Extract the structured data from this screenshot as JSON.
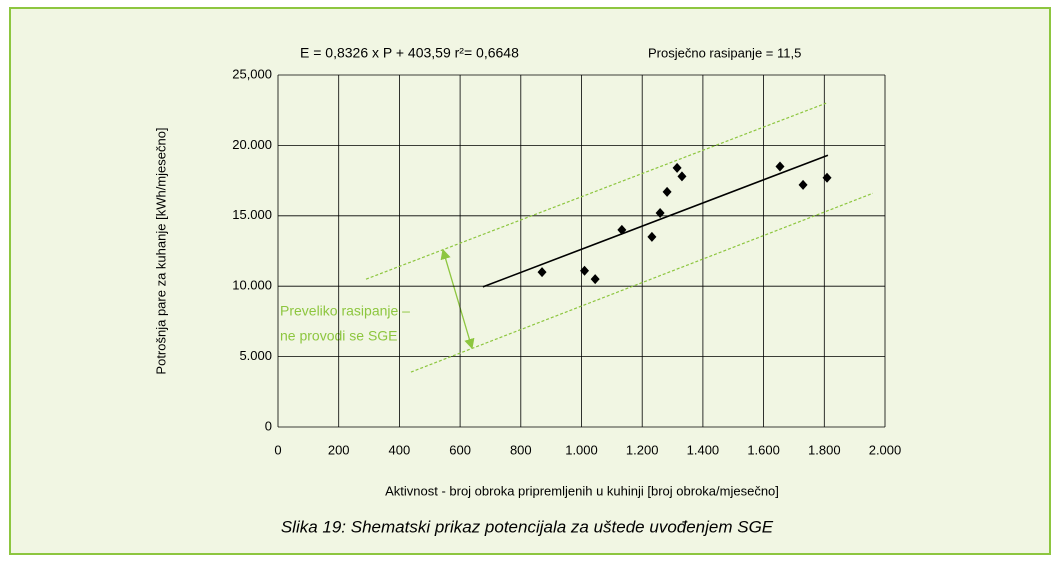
{
  "chart_data": {
    "type": "scatter",
    "equation": "E = 0,8326  x  P + 403,59  r²= 0,6648",
    "scatter_note": "Prosječno rasipanje = 11,5",
    "y_label": "Potrošnja pare za kuhanje  [kWh/mjesečno]",
    "x_label": "Aktivnost - broj obroka pripremljenih u kuhinji [broj obroka/mjesečno]",
    "caption": "Slika 19: Shematski prikaz potencijala za uštede uvođenjem SGE",
    "annotation": [
      "Preveliko rasipanje –",
      "ne provodi se SGE"
    ],
    "xlim": [
      0,
      2000
    ],
    "ylim": [
      0,
      25000
    ],
    "xticks": [
      0,
      200,
      400,
      600,
      800,
      {
        "value": 1000,
        "label": "1.000"
      },
      {
        "value": 1200,
        "label": "1.200"
      },
      {
        "value": 1400,
        "label": "1.400"
      },
      {
        "value": 1600,
        "label": "1.600"
      },
      {
        "value": 1800,
        "label": "1.800"
      },
      {
        "value": 2000,
        "label": "2.000"
      }
    ],
    "yticks": [
      0,
      {
        "value": 5000,
        "label": "5.000"
      },
      {
        "value": 10000,
        "label": "10.000"
      },
      {
        "value": 15000,
        "label": "15.000"
      },
      {
        "value": 20000,
        "label": "20.000"
      },
      {
        "value": 25000,
        "label": "25,000"
      }
    ],
    "grid": true,
    "series": [
      {
        "color": "#000000",
        "x": [
          870,
          1010,
          1045,
          1133,
          1232,
          1259,
          1282,
          1315,
          1331,
          1654,
          1730,
          1809
        ],
        "values": [
          11000,
          11100,
          10500,
          14000,
          13500,
          15200,
          16700,
          18400,
          17800,
          18500,
          17200,
          17700
        ]
      },
      {
        "color": "#000000",
        "x": [
          675,
          1812
        ],
        "values": [
          9950,
          19300
        ]
      },
      {
        "color": "#8dc63f",
        "x": [
          290,
          1806
        ],
        "values": [
          10500,
          23000
        ]
      },
      {
        "color": "#8dc63f",
        "x": [
          438,
          1960
        ],
        "values": [
          3900,
          16600
        ]
      }
    ]
  }
}
